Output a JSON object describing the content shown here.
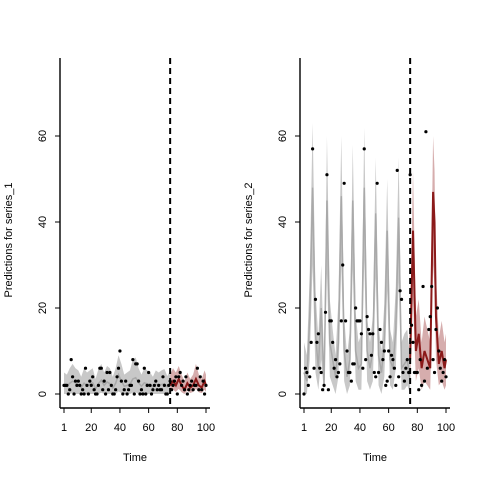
{
  "chart_data": [
    {
      "type": "line",
      "xlabel": "Time",
      "ylabel": "Predictions for series_1",
      "xticks": [
        1,
        20,
        40,
        60,
        80,
        100
      ],
      "yticks": [
        0,
        20,
        40,
        60
      ],
      "xlim": [
        1,
        100
      ],
      "ylim": [
        0,
        78
      ],
      "forecast_start": 75,
      "grid": false,
      "legend": "none",
      "colors": {
        "history": "#a9a9a9",
        "forecast": "#8b1a1a",
        "interval": "#c48a8a",
        "points": "#000000"
      },
      "observed": {
        "x": [
          1,
          2,
          3,
          4,
          5,
          6,
          7,
          8,
          9,
          10,
          11,
          12,
          13,
          14,
          15,
          16,
          17,
          18,
          19,
          20,
          21,
          22,
          23,
          24,
          25,
          26,
          27,
          28,
          29,
          30,
          31,
          32,
          33,
          34,
          35,
          36,
          37,
          38,
          39,
          40,
          41,
          42,
          43,
          44,
          45,
          46,
          47,
          48,
          49,
          50,
          51,
          52,
          53,
          54,
          55,
          56,
          57,
          58,
          59,
          60,
          61,
          62,
          63,
          64,
          65,
          66,
          67,
          68,
          69,
          70,
          71,
          72,
          73,
          74,
          75,
          76,
          77,
          78,
          79,
          80,
          81,
          82,
          83,
          84,
          85,
          86,
          87,
          88,
          89,
          90,
          91,
          92,
          93,
          94,
          95,
          96,
          97,
          98,
          99,
          100
        ],
        "y": [
          2,
          2,
          2,
          0,
          1,
          8,
          4,
          0,
          3,
          2,
          3,
          2,
          0,
          1,
          0,
          6,
          2,
          0,
          3,
          2,
          4,
          1,
          0,
          0,
          2,
          6,
          6,
          1,
          3,
          0,
          5,
          1,
          5,
          2,
          0,
          0,
          1,
          4,
          6,
          10,
          3,
          0,
          1,
          3,
          0,
          1,
          2,
          2,
          8,
          0,
          7,
          7,
          3,
          0,
          1,
          0,
          6,
          0,
          2,
          5,
          2,
          0,
          1,
          2,
          3,
          1,
          2,
          1,
          1,
          4,
          2,
          0,
          0,
          2,
          3,
          1,
          2,
          3,
          4,
          0,
          4,
          5,
          2,
          3,
          1,
          4,
          0,
          1,
          2,
          3,
          1,
          2,
          2,
          6,
          1,
          4,
          1,
          3,
          0,
          2
        ]
      },
      "fitted_x": [
        1,
        3,
        5,
        7,
        9,
        11,
        13,
        15,
        17,
        19,
        21,
        23,
        25,
        27,
        29,
        31,
        33,
        35,
        37,
        39,
        41,
        43,
        45,
        47,
        49,
        51,
        53,
        55,
        57,
        59,
        61,
        63,
        65,
        67,
        69,
        71,
        73,
        75
      ],
      "fitted": [
        2,
        1.8,
        2.5,
        3,
        2.6,
        2.2,
        1.5,
        2.5,
        2,
        2.3,
        2.6,
        1.2,
        2.4,
        3.2,
        2,
        2.8,
        2.4,
        1.4,
        2.5,
        4.5,
        3,
        1.8,
        2,
        2.3,
        3.5,
        3.8,
        2.6,
        1.8,
        2.6,
        2.4,
        2.2,
        1.6,
        2.3,
        2.1,
        2.2,
        2.4,
        1.7,
        2.3
      ],
      "fitted_upper": [
        5,
        4.5,
        6,
        7,
        6,
        5.5,
        4,
        6,
        5,
        5.5,
        6,
        3.5,
        5.8,
        7,
        5,
        6.5,
        6,
        4,
        6,
        9,
        7,
        4.5,
        5,
        5.5,
        8,
        8.5,
        6,
        4.5,
        6,
        5.5,
        5,
        4,
        5.5,
        5,
        5.5,
        5.8,
        4.2,
        5.5
      ],
      "fitted_lower": [
        0,
        0,
        0,
        0.2,
        0,
        0,
        0,
        0,
        0,
        0,
        0,
        0,
        0,
        0.3,
        0,
        0,
        0,
        0,
        0,
        0.6,
        0.2,
        0,
        0,
        0,
        0.3,
        0.4,
        0,
        0,
        0,
        0,
        0,
        0,
        0,
        0,
        0,
        0,
        0,
        0
      ],
      "forecast_x": [
        75,
        77,
        79,
        81,
        83,
        85,
        87,
        89,
        91,
        93,
        95,
        97,
        99,
        100
      ],
      "forecast": [
        2,
        3,
        2,
        3.5,
        2,
        1,
        2.5,
        1.5,
        2,
        3.5,
        2,
        1.5,
        3,
        2
      ],
      "forecast_upper": [
        4.5,
        6,
        5,
        6.5,
        4.5,
        3,
        5,
        3.5,
        4.5,
        7,
        4.5,
        3.5,
        5.5,
        4.5
      ],
      "forecast_lower": [
        0.5,
        1,
        0.5,
        1.2,
        0.4,
        0,
        0.8,
        0.2,
        0.5,
        1.2,
        0.4,
        0.2,
        1,
        0.5
      ]
    },
    {
      "type": "line",
      "xlabel": "Time",
      "ylabel": "Predictions for series_2",
      "xticks": [
        1,
        20,
        40,
        60,
        80,
        100
      ],
      "yticks": [
        0,
        20,
        40,
        60
      ],
      "xlim": [
        1,
        100
      ],
      "ylim": [
        0,
        78
      ],
      "forecast_start": 75,
      "grid": false,
      "legend": "none",
      "colors": {
        "history": "#a9a9a9",
        "forecast": "#8b1a1a",
        "interval": "#c48a8a",
        "points": "#000000"
      },
      "observed": {
        "x": [
          1,
          2,
          3,
          4,
          5,
          6,
          7,
          8,
          9,
          10,
          11,
          12,
          13,
          14,
          15,
          16,
          17,
          18,
          19,
          20,
          21,
          22,
          23,
          24,
          25,
          26,
          27,
          28,
          29,
          30,
          31,
          32,
          33,
          34,
          35,
          36,
          37,
          38,
          39,
          40,
          41,
          42,
          43,
          44,
          45,
          46,
          47,
          48,
          49,
          50,
          51,
          52,
          53,
          54,
          55,
          56,
          57,
          58,
          59,
          60,
          61,
          62,
          63,
          64,
          65,
          66,
          67,
          68,
          69,
          70,
          71,
          72,
          73,
          74,
          75,
          76,
          77,
          78,
          79,
          80,
          81,
          82,
          83,
          84,
          85,
          86,
          87,
          88,
          89,
          90,
          91,
          92,
          93,
          94,
          95,
          96,
          97,
          98,
          99,
          100
        ],
        "y": [
          0,
          6,
          5,
          2,
          4,
          12,
          57,
          6,
          22,
          12,
          14,
          6,
          5,
          1,
          2,
          19,
          51,
          1,
          17,
          17,
          12,
          6,
          8,
          4,
          5,
          7,
          17,
          30,
          49,
          17,
          10,
          5,
          5,
          3,
          7,
          7,
          20,
          17,
          17,
          17,
          14,
          6,
          57,
          8,
          18,
          15,
          14,
          9,
          14,
          5,
          4,
          49,
          5,
          15,
          12,
          8,
          10,
          2,
          3,
          10,
          4,
          9,
          8,
          6,
          2,
          52,
          4,
          24,
          22,
          5,
          3,
          6,
          8,
          5,
          51,
          16,
          12,
          5,
          5,
          5,
          1,
          8,
          2,
          25,
          3,
          61,
          6,
          15,
          18,
          25,
          8,
          5,
          15,
          20,
          10,
          6,
          3,
          5,
          8,
          4
        ]
      },
      "fitted_x": [
        1,
        3,
        5,
        7,
        9,
        11,
        13,
        15,
        17,
        19,
        21,
        23,
        25,
        27,
        29,
        31,
        33,
        35,
        37,
        39,
        41,
        43,
        45,
        47,
        49,
        51,
        53,
        55,
        57,
        59,
        61,
        63,
        65,
        67,
        69,
        71,
        73,
        75
      ],
      "fitted": [
        5,
        3,
        18,
        48,
        14,
        6,
        20,
        2,
        45,
        12,
        8,
        4,
        12,
        46,
        10,
        4,
        8,
        45,
        10,
        6,
        7,
        48,
        10,
        6,
        10,
        42,
        9,
        5,
        12,
        38,
        8,
        6,
        15,
        41,
        6,
        7,
        8,
        3
      ],
      "fitted_upper": [
        12,
        9,
        28,
        63,
        24,
        13,
        30,
        7,
        60,
        22,
        15,
        9,
        22,
        60,
        18,
        9,
        15,
        58,
        19,
        12,
        14,
        62,
        18,
        12,
        18,
        55,
        16,
        10,
        21,
        50,
        15,
        12,
        25,
        55,
        12,
        14,
        15,
        8
      ],
      "fitted_lower": [
        0,
        0,
        8,
        30,
        5,
        1,
        8,
        0,
        28,
        4,
        2,
        0,
        4,
        30,
        3,
        0,
        2,
        29,
        3,
        1,
        1,
        31,
        3,
        1,
        3,
        27,
        2,
        0,
        4,
        24,
        2,
        1,
        6,
        26,
        1,
        1,
        2,
        0
      ],
      "forecast_x": [
        75,
        77,
        79,
        81,
        83,
        85,
        87,
        89,
        91,
        92,
        93,
        95,
        97,
        99,
        100
      ],
      "forecast": [
        8,
        38,
        10,
        14,
        6,
        10,
        8,
        6,
        47,
        40,
        18,
        7,
        10,
        6,
        8
      ],
      "forecast_upper": [
        16,
        52,
        18,
        22,
        12,
        18,
        15,
        12,
        60,
        52,
        28,
        13,
        17,
        12,
        14
      ],
      "forecast_lower": [
        2,
        22,
        3,
        6,
        1,
        3,
        2,
        1,
        30,
        25,
        8,
        2,
        3,
        1,
        2
      ]
    }
  ]
}
